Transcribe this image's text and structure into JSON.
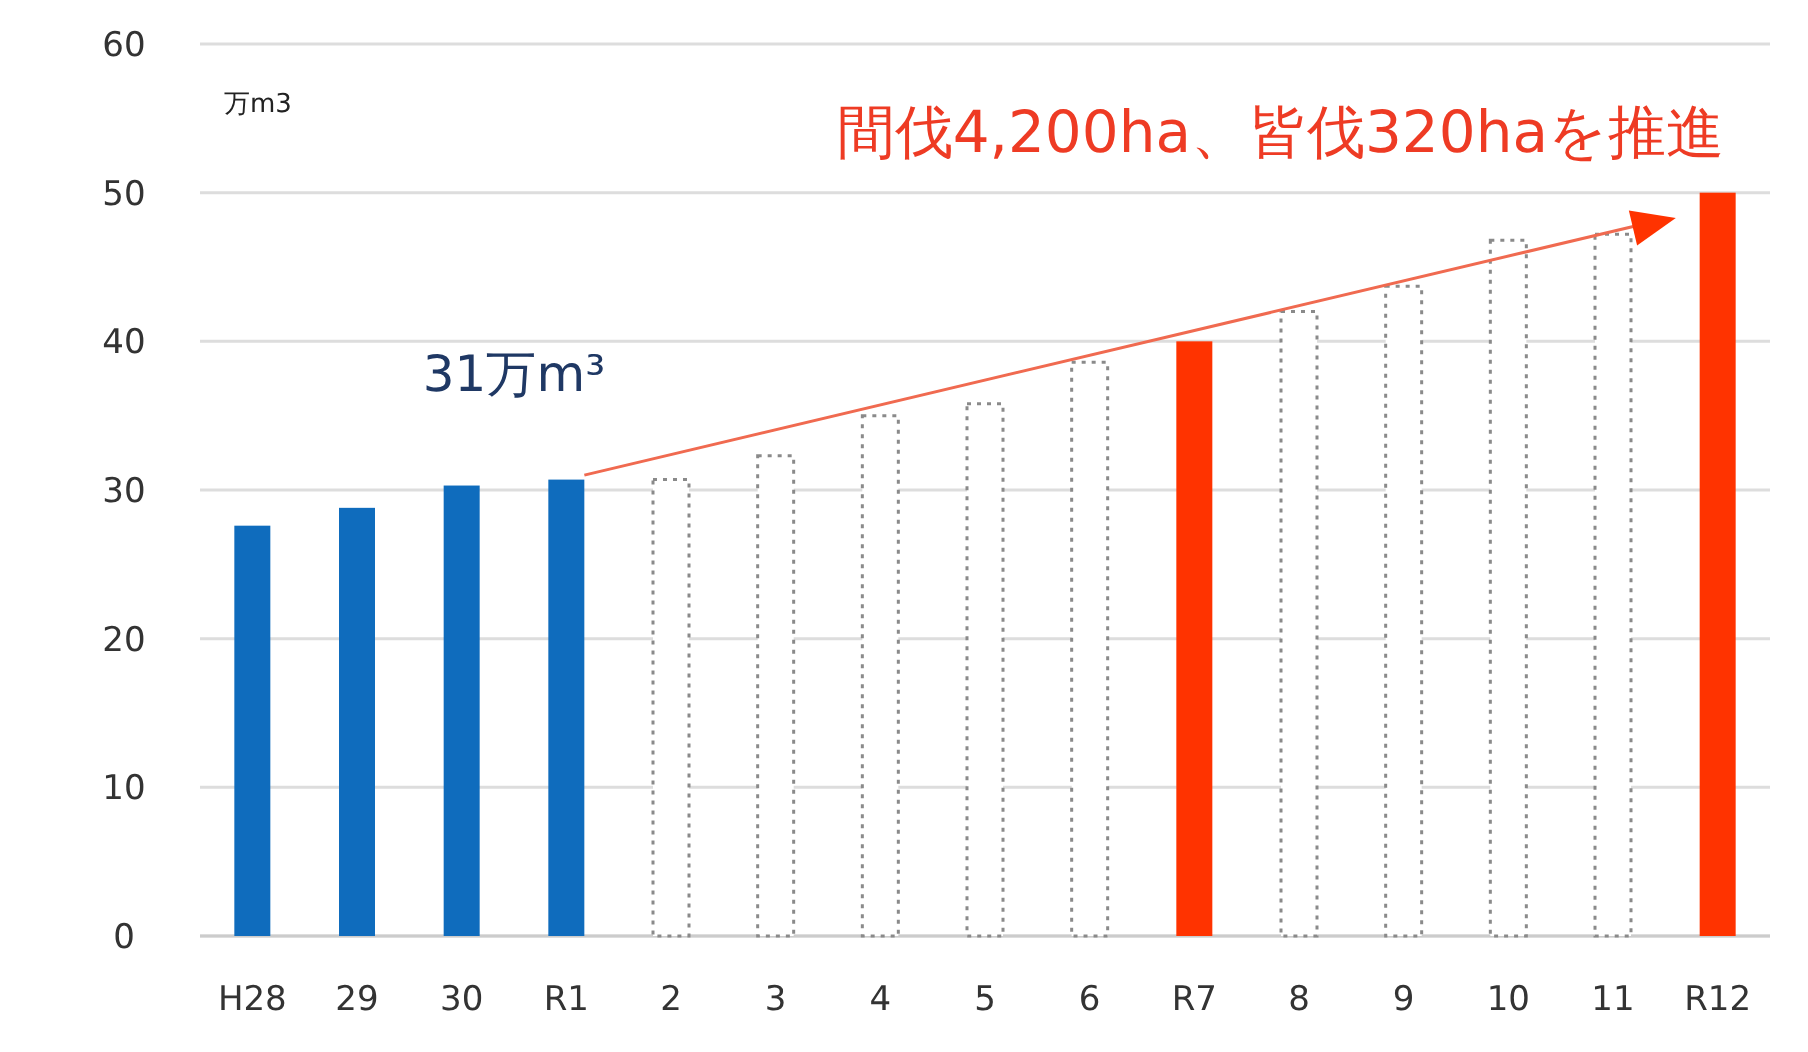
{
  "chart_data": {
    "type": "bar",
    "title": "間伐4,200ha、皆伐320haを推進",
    "ylabel": "万m3",
    "categories": [
      "H28",
      "29",
      "30",
      "R1",
      "2",
      "3",
      "4",
      "5",
      "6",
      "R7",
      "8",
      "9",
      "10",
      "11",
      "R12"
    ],
    "series": [
      {
        "color": "#0f6cbd",
        "values": [
          27.6,
          28.8,
          30.3,
          30.7,
          null,
          null,
          null,
          null,
          null,
          null,
          null,
          null,
          null,
          null,
          null
        ]
      },
      {
        "color": "#8a8a8a",
        "line_style": "dotted",
        "values": [
          null,
          null,
          null,
          null,
          30.7,
          32.3,
          35,
          35.8,
          38.6,
          null,
          42,
          43.7,
          46.8,
          47.2,
          null
        ]
      },
      {
        "color": "#ff3300",
        "values": [
          null,
          null,
          null,
          null,
          null,
          null,
          null,
          null,
          null,
          40,
          null,
          null,
          null,
          null,
          50
        ]
      }
    ],
    "ylim": [
      0,
      60
    ],
    "yticks": [
      0,
      10,
      20,
      30,
      40,
      50,
      60
    ],
    "grid": "y",
    "annotations": [
      {
        "text": "31万m³",
        "x": "R1",
        "y": 31
      }
    ]
  }
}
